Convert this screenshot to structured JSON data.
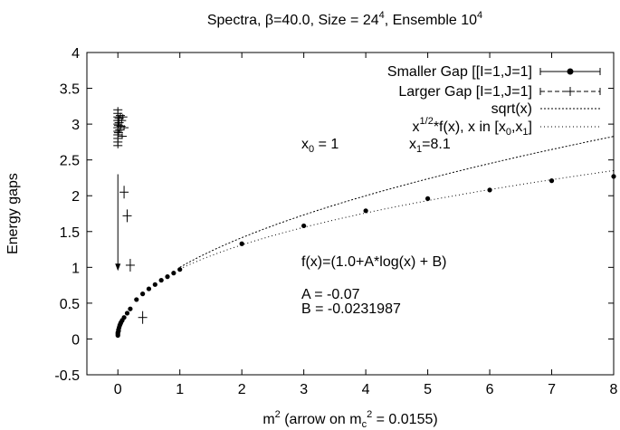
{
  "chart_data": {
    "type": "scatter",
    "title": {
      "prefix": "Spectra, β=40.0, Size = 24",
      "size_exp": "4",
      "mid": ", Ensemble 10",
      "ens_exp": "4"
    },
    "xlabel": {
      "part1": "m",
      "sup1": "2",
      "part2": " (arrow on m",
      "sub": "c",
      "sup2": "2",
      "part3": " = 0.0155)"
    },
    "ylabel": "Energy gaps",
    "xlim": [
      -0.5,
      8
    ],
    "ylim": [
      -0.5,
      4
    ],
    "xticks": [
      0,
      1,
      2,
      3,
      4,
      5,
      6,
      7,
      8
    ],
    "yticks": [
      -0.5,
      0,
      0.5,
      1,
      1.5,
      2,
      2.5,
      3,
      3.5,
      4
    ],
    "grid": false,
    "legend_position": "top-right",
    "legend": [
      {
        "label": "Smaller Gap [[I=1,J=1]",
        "style": "points-with-errorbars"
      },
      {
        "label": "Larger Gap [I=1,J=1]",
        "style": "dashed-crosses"
      },
      {
        "label": "sqrt(x)",
        "style": "dense-dotted-line"
      },
      {
        "label_base": "x",
        "label_sup": "1/2",
        "label_rest": "*f(x), x in [x",
        "label_sub0": "0",
        "label_mid": ",x",
        "label_sub1": "1",
        "label_end": "]",
        "style": "sparse-dotted-line"
      }
    ],
    "annotations": {
      "x0": {
        "base": "x",
        "sub": "0",
        "rest": " = 1"
      },
      "x1": {
        "base": "x",
        "sub": "1",
        "rest": "=8.1"
      },
      "formula": "f(x)=(1.0+A*log(x) + B)",
      "A": "A = -0.07",
      "B": "B = -0.0231987"
    },
    "arrow": {
      "x": 0.0,
      "from_y": 2.3,
      "to_y": 0.95
    },
    "fit_params": {
      "A": -0.07,
      "B": -0.0231987,
      "x0": 1,
      "x1": 8.1
    },
    "series": [
      {
        "name": "Smaller Gap [[I=1,J=1]",
        "points": [
          [
            0.0,
            0.05
          ],
          [
            0.0,
            0.07
          ],
          [
            0.0,
            0.09
          ],
          [
            0.01,
            0.11
          ],
          [
            0.01,
            0.13
          ],
          [
            0.02,
            0.16
          ],
          [
            0.03,
            0.19
          ],
          [
            0.04,
            0.21
          ],
          [
            0.05,
            0.23
          ],
          [
            0.07,
            0.26
          ],
          [
            0.1,
            0.3
          ],
          [
            0.15,
            0.36
          ],
          [
            0.2,
            0.42
          ],
          [
            0.3,
            0.55
          ],
          [
            0.4,
            0.63
          ],
          [
            0.5,
            0.7
          ],
          [
            0.6,
            0.76
          ],
          [
            0.7,
            0.82
          ],
          [
            0.8,
            0.87
          ],
          [
            0.9,
            0.92
          ],
          [
            1.0,
            0.97
          ],
          [
            2.0,
            1.33
          ],
          [
            3.0,
            1.58
          ],
          [
            4.0,
            1.79
          ],
          [
            5.0,
            1.96
          ],
          [
            6.0,
            2.08
          ],
          [
            7.0,
            2.21
          ],
          [
            8.0,
            2.27
          ]
        ]
      },
      {
        "name": "Larger Gap [I=1,J=1]",
        "points": [
          [
            0.0,
            2.7
          ],
          [
            0.0,
            2.75
          ],
          [
            0.0,
            2.8
          ],
          [
            0.0,
            2.85
          ],
          [
            0.0,
            2.9
          ],
          [
            0.0,
            2.95
          ],
          [
            0.0,
            3.0
          ],
          [
            0.0,
            3.05
          ],
          [
            0.0,
            3.1
          ],
          [
            0.0,
            3.15
          ],
          [
            0.0,
            3.2
          ],
          [
            0.01,
            2.88
          ],
          [
            0.01,
            2.98
          ],
          [
            0.02,
            3.02
          ],
          [
            0.02,
            3.08
          ],
          [
            0.03,
            2.92
          ],
          [
            0.04,
            3.12
          ],
          [
            0.05,
            2.97
          ],
          [
            0.06,
            3.05
          ],
          [
            0.07,
            2.83
          ],
          [
            0.08,
            3.1
          ],
          [
            0.1,
            2.95
          ],
          [
            0.1,
            2.05
          ],
          [
            0.15,
            1.72
          ],
          [
            0.2,
            1.03
          ],
          [
            0.4,
            0.3
          ]
        ]
      }
    ]
  }
}
